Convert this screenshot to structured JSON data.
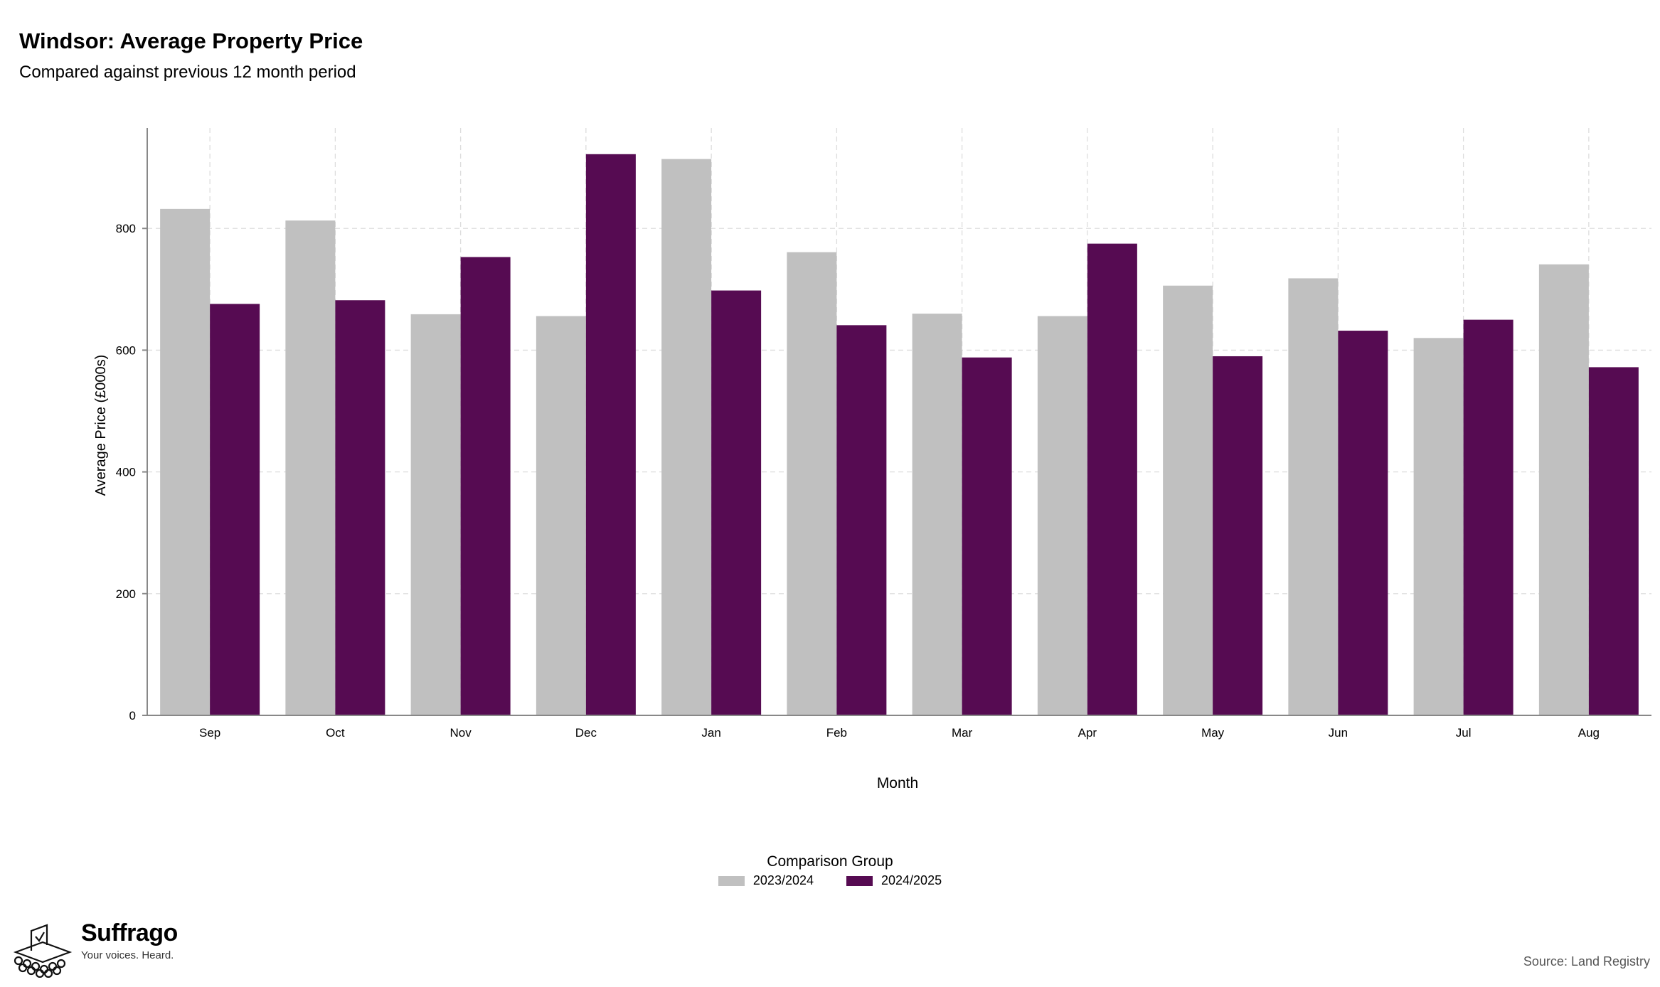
{
  "chart_data": {
    "type": "bar",
    "title": "Windsor: Average Property Price",
    "subtitle": "Compared against previous 12 month period",
    "xlabel": "Month",
    "ylabel": "Average Price (£000s)",
    "categories": [
      "Sep",
      "Oct",
      "Nov",
      "Dec",
      "Jan",
      "Feb",
      "Mar",
      "Apr",
      "May",
      "Jun",
      "Jul",
      "Aug"
    ],
    "series": [
      {
        "name": "2023/2024",
        "color": "#c0c0c0",
        "values": [
          832,
          813,
          659,
          656,
          914,
          761,
          660,
          656,
          706,
          718,
          620,
          741
        ]
      },
      {
        "name": "2024/2025",
        "color": "#560b52",
        "values": [
          676,
          682,
          753,
          922,
          698,
          641,
          588,
          775,
          590,
          632,
          650,
          572
        ]
      }
    ],
    "ylim": [
      0,
      965
    ],
    "yticks": [
      0,
      200,
      400,
      600,
      800
    ],
    "grid": true,
    "legend_title": "Comparison Group",
    "legend_position": "bottom"
  },
  "branding": {
    "logo_name": "Suffrago",
    "logo_tagline": "Your voices. Heard.",
    "logo_icon": "ballot-box-icon"
  },
  "source": "Source: Land Registry"
}
